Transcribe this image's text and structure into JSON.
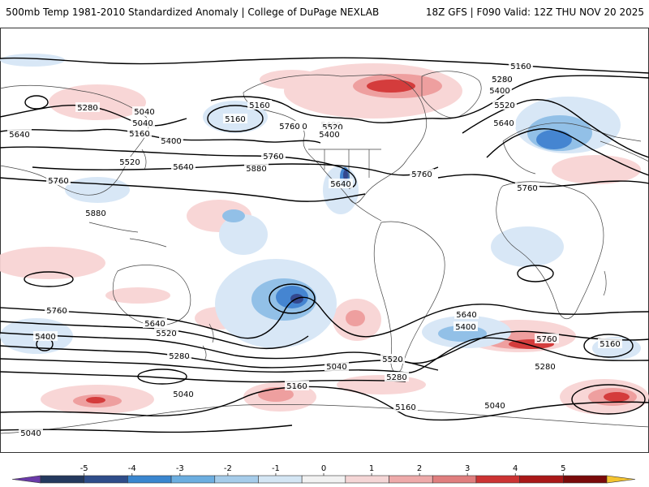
{
  "header": {
    "left_title": "500mb Temp 1981-2010 Standardized Anomaly | College of DuPage NEXLAB",
    "right_title": "18Z GFS | F090 Valid: 12Z THU NOV 20 2025"
  },
  "contours": [
    {
      "label": "5160"
    },
    {
      "label": "5280"
    },
    {
      "label": "5400"
    },
    {
      "label": "5520"
    },
    {
      "label": "5280"
    },
    {
      "label": "5640"
    },
    {
      "label": "5040"
    },
    {
      "label": "5160"
    },
    {
      "label": "5280"
    },
    {
      "label": "5520"
    },
    {
      "label": "5400"
    },
    {
      "label": "5640"
    },
    {
      "label": "5160"
    },
    {
      "label": "5400"
    },
    {
      "label": "5520"
    },
    {
      "label": "5640"
    },
    {
      "label": "5760"
    },
    {
      "label": "5880"
    },
    {
      "label": "5760"
    },
    {
      "label": "5640"
    },
    {
      "label": "5760"
    },
    {
      "label": "5880"
    },
    {
      "label": "5760"
    },
    {
      "label": "5640"
    },
    {
      "label": "5520"
    },
    {
      "label": "5400"
    },
    {
      "label": "5280"
    },
    {
      "label": "5760"
    },
    {
      "label": "5640"
    },
    {
      "label": "5760"
    },
    {
      "label": "5400"
    },
    {
      "label": "5520"
    },
    {
      "label": "5280"
    },
    {
      "label": "5040"
    },
    {
      "label": "5160"
    },
    {
      "label": "5040"
    },
    {
      "label": "5040"
    },
    {
      "label": "5520"
    },
    {
      "label": "5280"
    },
    {
      "label": "5160"
    },
    {
      "label": "5640"
    },
    {
      "label": "5400"
    },
    {
      "label": "5760"
    },
    {
      "label": "5280"
    },
    {
      "label": "5160"
    },
    {
      "label": "5040"
    },
    {
      "label": "5160"
    },
    {
      "label": "5040"
    }
  ],
  "colorbar": {
    "ticks": [
      "-5",
      "-4",
      "-3",
      "-2",
      "-1",
      "0",
      "1",
      "2",
      "3",
      "4",
      "5"
    ],
    "colors": [
      "#6a3aa8",
      "#24395e",
      "#2f4d8a",
      "#3a86cf",
      "#6caee0",
      "#a6ccea",
      "#d4e6f4",
      "#f2f2f2",
      "#f5d6d6",
      "#eeaaaa",
      "#e07e7e",
      "#cc3333",
      "#aa1818",
      "#7a0a0a",
      "#f4c430"
    ]
  },
  "colors": {
    "contour": "#000000",
    "border": "#333333",
    "warm_light": "#f8d4d4",
    "warm_mid": "#ee9a9a",
    "warm_strong": "#d23232",
    "cold_light": "#d6e6f6",
    "cold_mid": "#8dbde6",
    "cold_strong": "#3c7fcf",
    "cold_deep": "#2a3f8a"
  }
}
